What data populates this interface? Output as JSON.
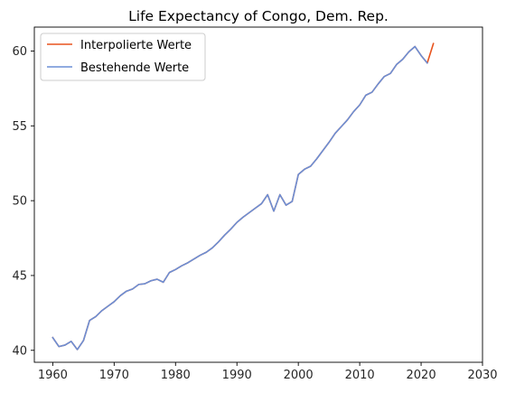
{
  "chart_data": {
    "type": "line",
    "title": "Life Expectancy of Congo, Dem. Rep.",
    "xlabel": "",
    "ylabel": "",
    "xlim": [
      1957,
      2030
    ],
    "ylim": [
      39.2,
      61.6
    ],
    "xticks": [
      1960,
      1970,
      1980,
      1990,
      2000,
      2010,
      2020,
      2030
    ],
    "yticks": [
      40,
      45,
      50,
      55,
      60
    ],
    "grid": false,
    "legend_position": "top-left",
    "series": [
      {
        "name": "Interpolierte Werte",
        "color": "#e8541e",
        "x": [
          1960,
          1961,
          1962,
          1963,
          1964,
          1965,
          1966,
          1967,
          1968,
          1969,
          1970,
          1971,
          1972,
          1973,
          1974,
          1975,
          1976,
          1977,
          1978,
          1979,
          1980,
          1981,
          1982,
          1983,
          1984,
          1985,
          1986,
          1987,
          1988,
          1989,
          1990,
          1991,
          1992,
          1993,
          1994,
          1995,
          1996,
          1997,
          1998,
          1999,
          2000,
          2001,
          2002,
          2003,
          2004,
          2005,
          2006,
          2007,
          2008,
          2009,
          2010,
          2011,
          2012,
          2013,
          2014,
          2015,
          2016,
          2017,
          2018,
          2019,
          2020,
          2021,
          2022
        ],
        "y": [
          40.85,
          40.25,
          40.35,
          40.6,
          40.05,
          40.65,
          42.0,
          42.25,
          42.65,
          42.95,
          43.25,
          43.65,
          43.95,
          44.1,
          44.4,
          44.45,
          44.65,
          44.75,
          44.55,
          45.2,
          45.4,
          45.65,
          45.85,
          46.1,
          46.35,
          46.55,
          46.85,
          47.25,
          47.7,
          48.1,
          48.55,
          48.9,
          49.2,
          49.5,
          49.8,
          50.4,
          49.3,
          50.4,
          49.7,
          49.95,
          51.75,
          52.1,
          52.3,
          52.8,
          53.35,
          53.9,
          54.5,
          54.95,
          55.4,
          55.95,
          56.4,
          57.05,
          57.25,
          57.8,
          58.3,
          58.5,
          59.1,
          59.45,
          59.95,
          60.3,
          59.7,
          59.2,
          60.5
        ]
      },
      {
        "name": "Bestehende Werte",
        "color": "#6b8fd6",
        "x": [
          1960,
          1961,
          1962,
          1963,
          1964,
          1965,
          1966,
          1967,
          1968,
          1969,
          1970,
          1971,
          1972,
          1973,
          1974,
          1975,
          1976,
          1977,
          1978,
          1979,
          1980,
          1981,
          1982,
          1983,
          1984,
          1985,
          1986,
          1987,
          1988,
          1989,
          1990,
          1991,
          1992,
          1993,
          1994,
          1995,
          1996,
          1997,
          1998,
          1999,
          2000,
          2001,
          2002,
          2003,
          2004,
          2005,
          2006,
          2007,
          2008,
          2009,
          2010,
          2011,
          2012,
          2013,
          2014,
          2015,
          2016,
          2017,
          2018,
          2019,
          2020,
          2021
        ],
        "y": [
          40.85,
          40.25,
          40.35,
          40.6,
          40.05,
          40.65,
          42.0,
          42.25,
          42.65,
          42.95,
          43.25,
          43.65,
          43.95,
          44.1,
          44.4,
          44.45,
          44.65,
          44.75,
          44.55,
          45.2,
          45.4,
          45.65,
          45.85,
          46.1,
          46.35,
          46.55,
          46.85,
          47.25,
          47.7,
          48.1,
          48.55,
          48.9,
          49.2,
          49.5,
          49.8,
          50.4,
          49.3,
          50.4,
          49.7,
          49.95,
          51.75,
          52.1,
          52.3,
          52.8,
          53.35,
          53.9,
          54.5,
          54.95,
          55.4,
          55.95,
          56.4,
          57.05,
          57.25,
          57.8,
          58.3,
          58.5,
          59.1,
          59.45,
          59.95,
          60.3,
          59.7,
          59.2
        ]
      }
    ]
  }
}
